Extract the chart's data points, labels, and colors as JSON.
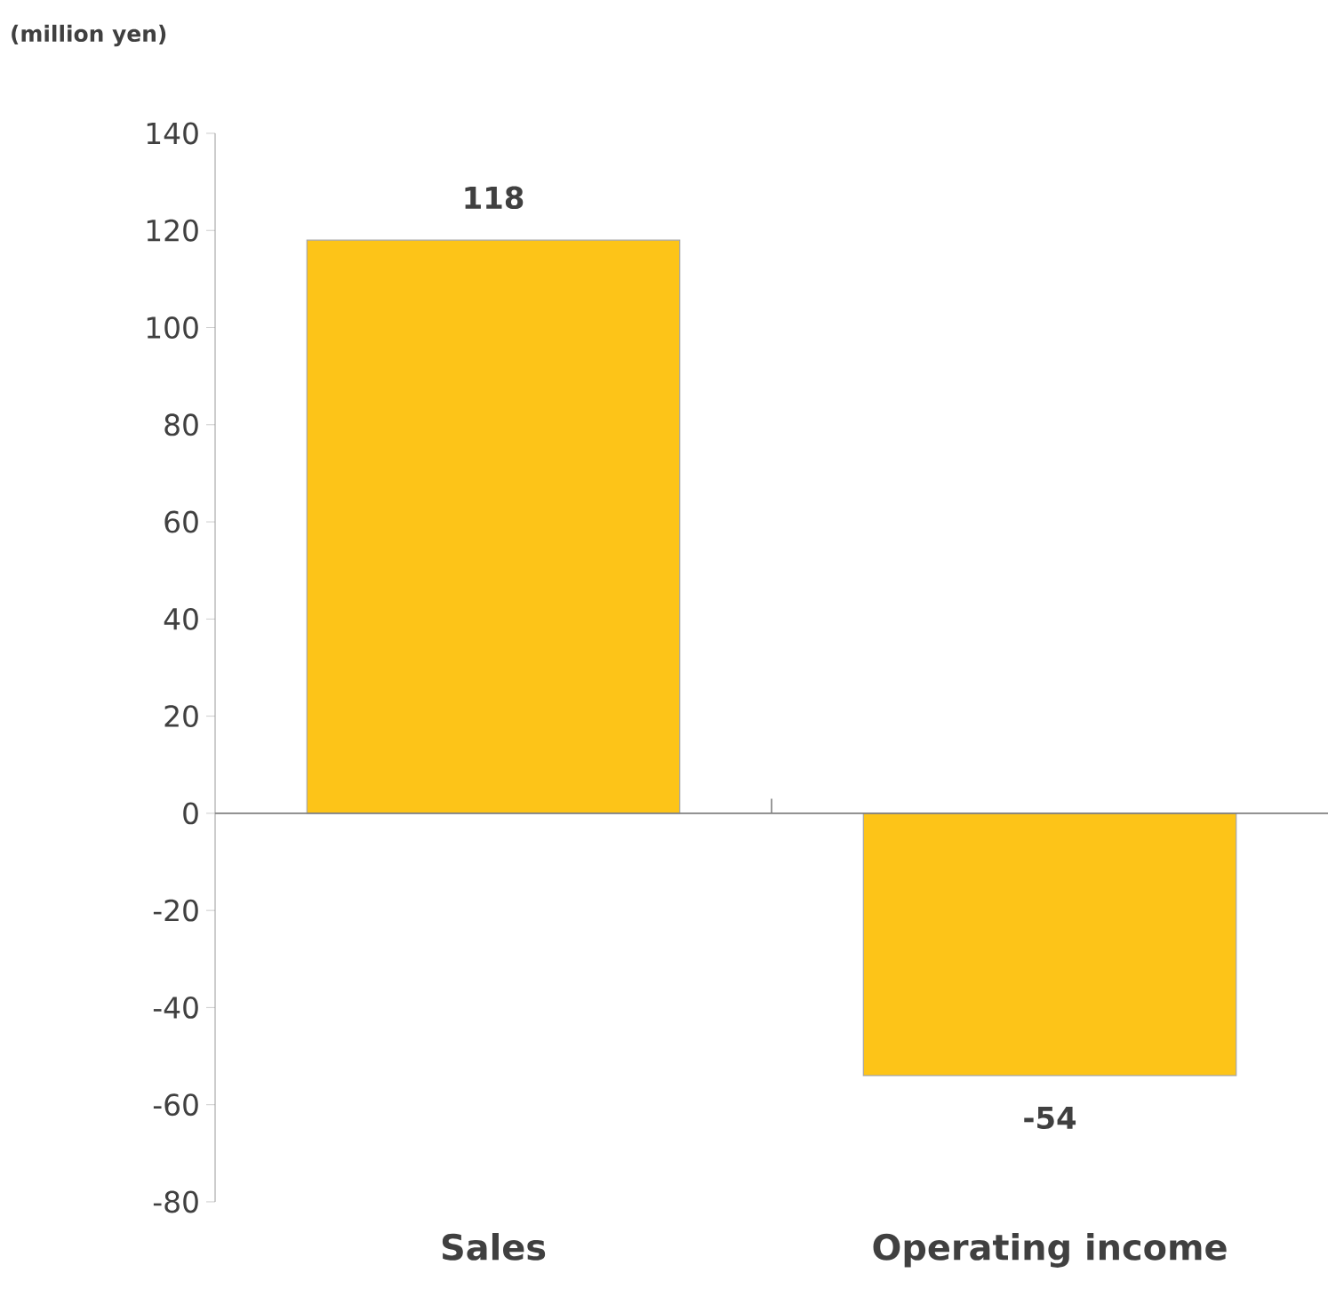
{
  "chart_data": {
    "type": "bar",
    "ylabel": "(million yen)",
    "categories": [
      "Sales",
      "Operating income"
    ],
    "values": [
      118,
      -54
    ],
    "color": "#fdc418",
    "ylim": [
      -80,
      140
    ],
    "yticks": [
      -80,
      -60,
      -40,
      -20,
      0,
      20,
      40,
      60,
      80,
      100,
      120,
      140
    ],
    "data_labels": true
  }
}
